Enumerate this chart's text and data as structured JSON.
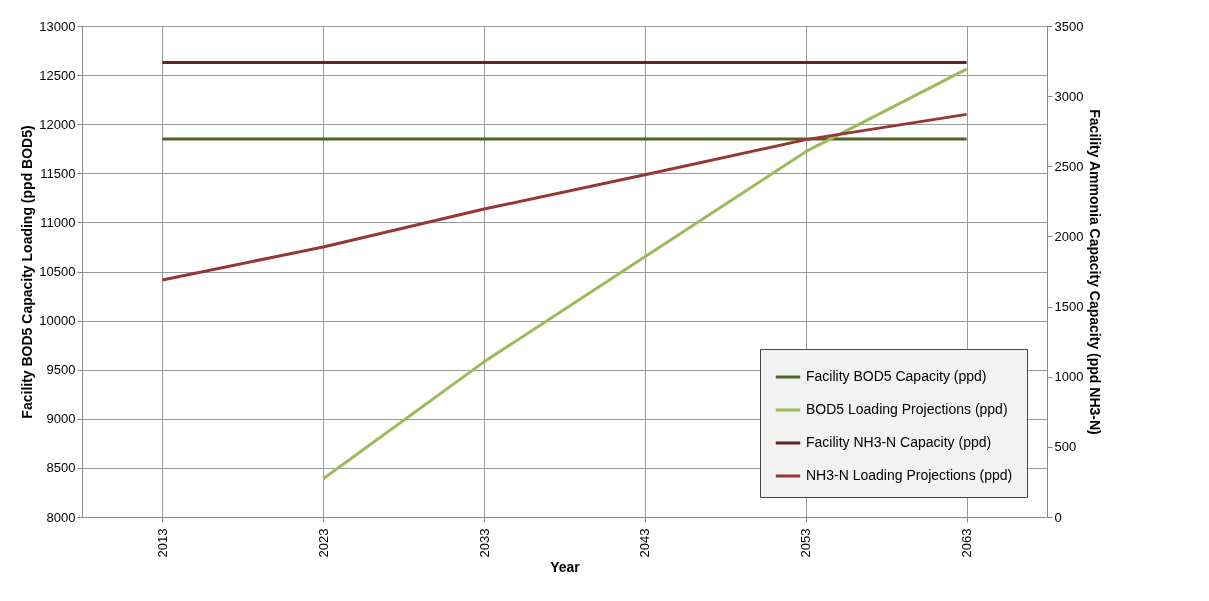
{
  "chart_data": {
    "type": "line",
    "xlabel": "Year",
    "ylabel": "Facility BOD5 Capacity Loading (ppd BOD5)",
    "y2label": "Facility Ammonia Capacity Capacity (ppd NH3-N)",
    "categories": [
      "2013",
      "2023",
      "2033",
      "2043",
      "2053",
      "2063"
    ],
    "series": [
      {
        "name": "Facility BOD5 Capacity (ppd)",
        "color": "#4f6228",
        "values": [
          11850,
          11850,
          11850,
          11850,
          11850,
          11850
        ]
      },
      {
        "name": "BOD5 Loading Projections (ppd)",
        "color": "#9bbb59",
        "values": [
          null,
          8390,
          9580,
          10650,
          11720,
          12560
        ]
      },
      {
        "name": "Facility NH3-N Capacity (ppd)",
        "color": "#632523",
        "axis": "y2",
        "values": [
          3240,
          3240,
          3240,
          3240,
          3240,
          3240
        ]
      },
      {
        "name": "NH3-N Loading Projections (ppd)",
        "color": "#953735",
        "axis": "y2",
        "values": [
          1690,
          1925,
          2195,
          2440,
          2690,
          2870
        ]
      }
    ],
    "ylim": [
      8000,
      13000
    ],
    "yticks": [
      8000,
      8500,
      9000,
      9500,
      10000,
      10500,
      11000,
      11500,
      12000,
      12500,
      13000
    ],
    "y2lim": [
      0,
      3500
    ],
    "y2ticks": [
      0,
      500,
      1000,
      1500,
      2000,
      2500,
      3000,
      3500
    ],
    "grid": true,
    "legend": "bottom right"
  }
}
